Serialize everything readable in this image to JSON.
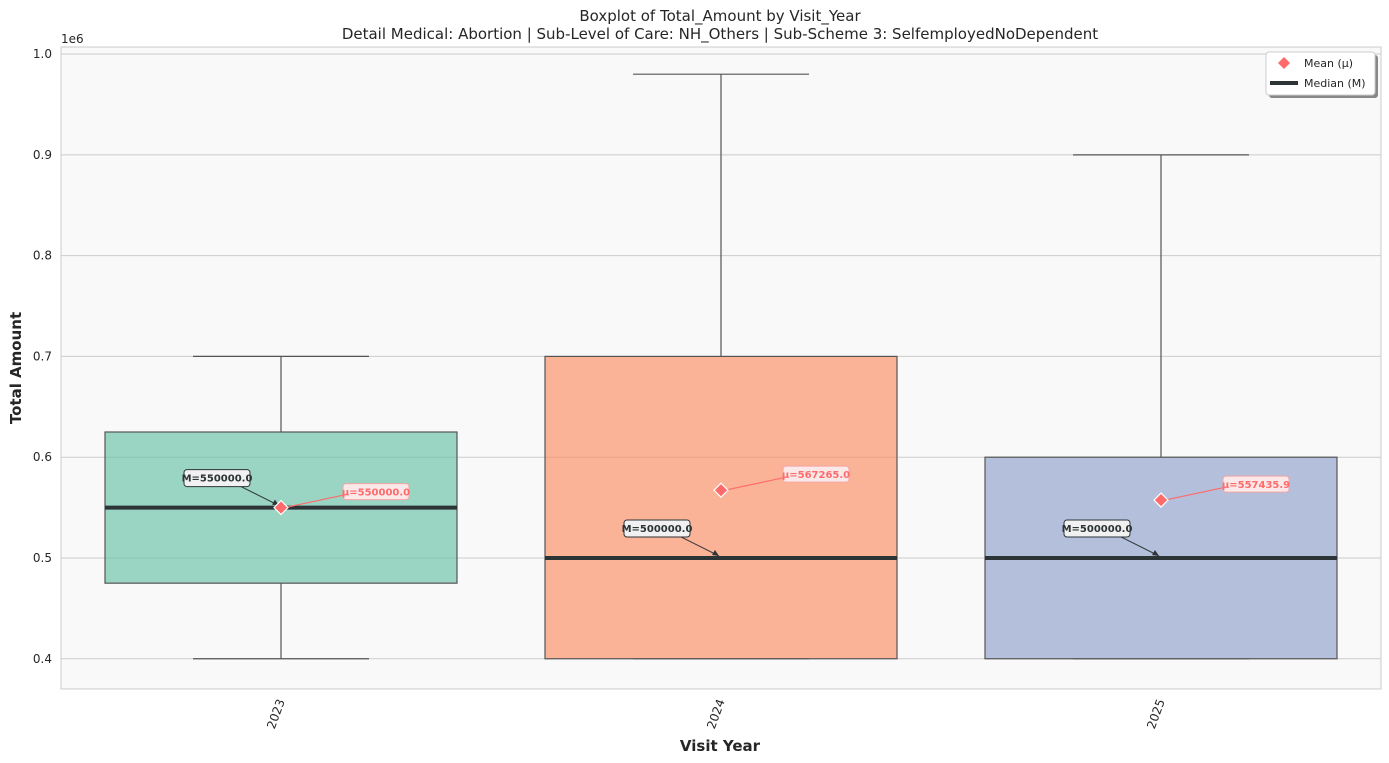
{
  "chart_data": {
    "type": "box",
    "title": "Boxplot of Total_Amount by Visit_Year",
    "subtitle": "Detail Medical: Abortion | Sub-Level of Care: NH_Others | Sub-Scheme 3: SelfemployedNoDependent",
    "xlabel": "Visit Year",
    "ylabel": "Total Amount",
    "y_offset_label": "1e6",
    "ylim": [
      0.37,
      1.007
    ],
    "yticks": [
      "0.4",
      "0.5",
      "0.6",
      "0.7",
      "0.8",
      "0.9",
      "1.0"
    ],
    "grid": true,
    "legend_position": "top-right",
    "legend": [
      {
        "label": "Mean (μ)",
        "marker": "diamond",
        "color": "#ff6b6b"
      },
      {
        "label": "Median (M)",
        "marker": "line",
        "color": "#2d3436"
      }
    ],
    "categories": [
      "2023",
      "2024",
      "2025"
    ],
    "boxes": [
      {
        "category": "2023",
        "whisker_low": 0.4,
        "q1": 0.475,
        "median": 0.55,
        "q3": 0.625,
        "whisker_high": 0.7,
        "mean": 0.55,
        "color": "#66c2a5",
        "median_label": "M=550000.0",
        "mean_label": "μ=550000.0"
      },
      {
        "category": "2024",
        "whisker_low": 0.4,
        "q1": 0.4,
        "median": 0.5,
        "q3": 0.7,
        "whisker_high": 0.98,
        "mean": 0.567265,
        "color": "#fc8d62",
        "median_label": "M=500000.0",
        "mean_label": "μ=567265.0"
      },
      {
        "category": "2025",
        "whisker_low": 0.4,
        "q1": 0.4,
        "median": 0.5,
        "q3": 0.6,
        "whisker_high": 0.9,
        "mean": 0.5574359,
        "color": "#8da0cb",
        "median_label": "M=500000.0",
        "mean_label": "μ=557435.9"
      }
    ],
    "colors": {
      "plot_background": "#f9f9f9",
      "grid": "#cccccc",
      "median_line": "#2d3436",
      "mean_marker": "#ff6b6b",
      "whisker": "#555555"
    }
  }
}
